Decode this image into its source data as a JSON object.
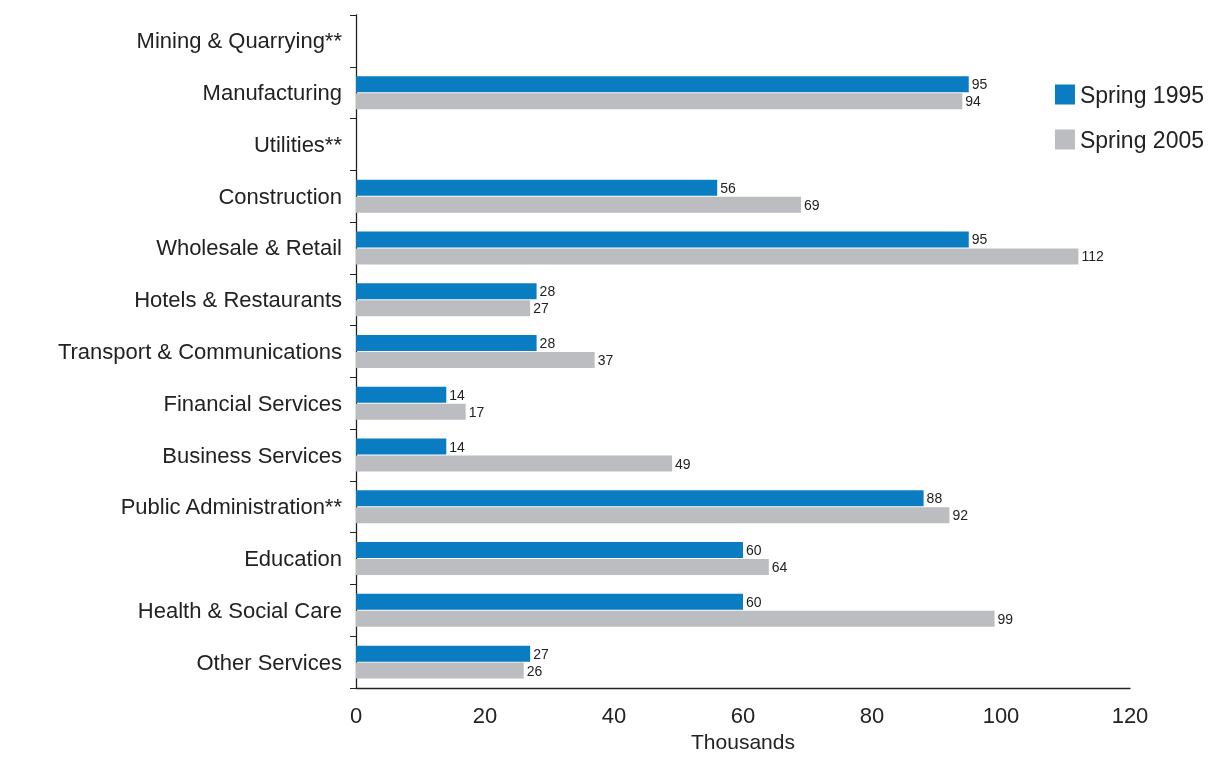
{
  "chart_data": {
    "type": "bar",
    "orientation": "horizontal",
    "xlabel": "Thousands",
    "categories": [
      "Mining & Quarrying**",
      "Manufacturing",
      "Utilities**",
      "Construction",
      "Wholesale & Retail",
      "Hotels & Restaurants",
      "Transport & Communications",
      "Financial Services",
      "Business Services",
      "Public Administration**",
      "Education",
      "Health & Social Care",
      "Other Services"
    ],
    "series": [
      {
        "name": "Spring 1995",
        "color": "#0a7cc1",
        "values": [
          null,
          95,
          null,
          56,
          95,
          28,
          28,
          14,
          14,
          88,
          60,
          60,
          27
        ]
      },
      {
        "name": "Spring 2005",
        "color": "#bcbdc1",
        "values": [
          null,
          94,
          null,
          69,
          112,
          27,
          37,
          17,
          49,
          92,
          64,
          99,
          26
        ]
      }
    ],
    "xlim": [
      0,
      120
    ],
    "xticks": [
      0,
      20,
      40,
      60,
      80,
      100,
      120
    ],
    "grid": false,
    "legend": "top right",
    "data_labels": true
  }
}
